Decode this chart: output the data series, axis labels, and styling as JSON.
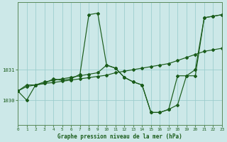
{
  "title": "Graphe pression niveau de la mer (hPa)",
  "bg_color": "#cce8e8",
  "plot_bg_color": "#cce8e8",
  "grid_color": "#99cccc",
  "line_color": "#1a5c1a",
  "xlim": [
    0,
    23
  ],
  "ylim": [
    1029.2,
    1033.2
  ],
  "ytick_positions": [
    1030.0,
    1031.0
  ],
  "ytick_labels": [
    "1030",
    "1031"
  ],
  "s1": [
    1030.3,
    1030.0,
    1030.5,
    1030.55,
    1030.7,
    1030.65,
    1030.7,
    1030.85,
    1032.8,
    1032.85,
    1031.15,
    1031.05,
    1030.75,
    1030.6,
    1030.5,
    1029.6,
    1029.6,
    1029.7,
    1029.85,
    1030.8,
    1030.8,
    1032.7,
    1032.75,
    1032.8
  ],
  "s2": [
    1030.3,
    1030.45,
    1030.5,
    1030.55,
    1030.58,
    1030.62,
    1030.66,
    1030.7,
    1030.74,
    1030.78,
    1030.82,
    1030.9,
    1030.95,
    1031.0,
    1031.05,
    1031.1,
    1031.15,
    1031.2,
    1031.3,
    1031.4,
    1031.5,
    1031.6,
    1031.65,
    1031.7
  ],
  "s3": [
    1030.3,
    1030.5,
    1030.5,
    1030.6,
    1030.65,
    1030.7,
    1030.75,
    1030.8,
    1030.85,
    1030.9,
    1031.15,
    1031.05,
    1030.75,
    1030.6,
    1030.5,
    1029.6,
    1029.6,
    1029.7,
    1030.8,
    1030.8,
    1031.0,
    1032.7,
    1032.75,
    1032.8
  ]
}
